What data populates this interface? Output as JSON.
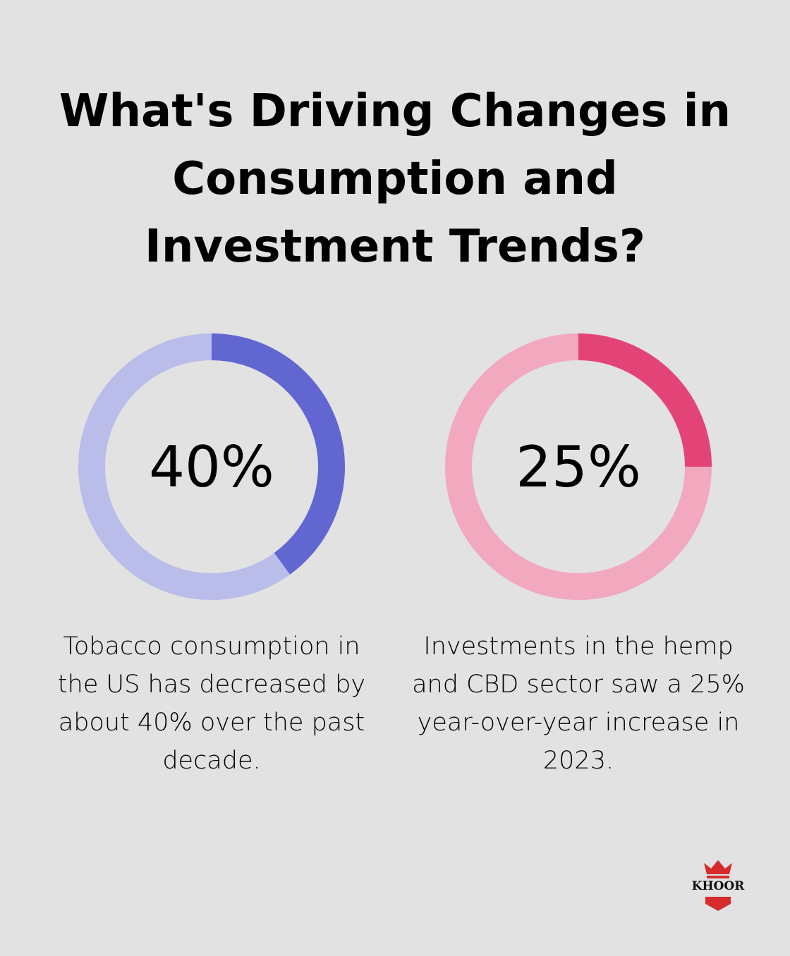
{
  "title": "What's Driving Changes in Consumption and Investment Trends?",
  "chart_data": [
    {
      "type": "pie",
      "name": "donut-tobacco",
      "label": "40%",
      "value": 40,
      "total": 100,
      "caption": "Tobacco consumption in the US has decreased by about 40% over the past decade.",
      "colors": {
        "fill": "#6266d0",
        "track": "#babdea"
      }
    },
    {
      "type": "pie",
      "name": "donut-hemp-cbd",
      "label": "25%",
      "value": 25,
      "total": 100,
      "caption": "Investments in the hemp and CBD sector saw a 25% year-over-year increase in 2023.",
      "colors": {
        "fill": "#e34477",
        "track": "#f2a8bf"
      }
    }
  ],
  "logo": {
    "text": "KHOOR",
    "icon": "crown-icon",
    "color": "#d62b2b"
  }
}
